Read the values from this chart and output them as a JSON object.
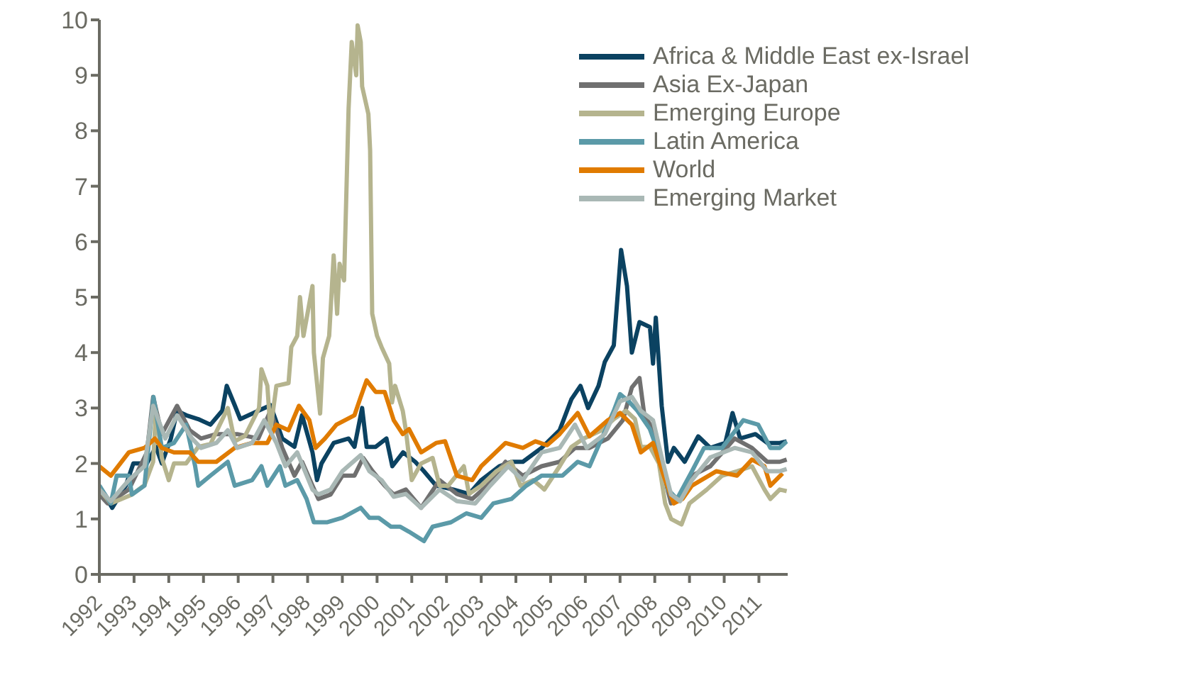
{
  "chart_data": {
    "type": "line",
    "xlim": [
      1992,
      2011.83
    ],
    "xticks": [
      1992,
      1993,
      1994,
      1995,
      1996,
      1997,
      1998,
      1999,
      2000,
      2001,
      2002,
      2003,
      2004,
      2005,
      2006,
      2007,
      2008,
      2009,
      2010,
      2011
    ],
    "ylim": [
      0,
      10
    ],
    "yticks": [
      0,
      1,
      2,
      3,
      4,
      5,
      6,
      7,
      8,
      9,
      10
    ],
    "grid": false,
    "legend": "top right",
    "marker": "none",
    "line_style": "solid",
    "series": [
      {
        "name": "Africa & Middle East ex-Israel",
        "color": "#0b4261",
        "x": [
          1992,
          1992.37,
          1992.76,
          1992.98,
          1993.37,
          1993.63,
          1993.8,
          1994.06,
          1994.24,
          1994.5,
          1994.85,
          1995.2,
          1995.54,
          1995.67,
          1995.9,
          1996.06,
          1996.58,
          1996.93,
          1997.27,
          1997.62,
          1997.84,
          1998.14,
          1998.27,
          1998.4,
          1998.75,
          1999.18,
          1999.35,
          1999.57,
          1999.7,
          1999.96,
          2000.27,
          2000.44,
          2000.75,
          2001.1,
          2001.35,
          2001.7,
          2002.2,
          2002.65,
          2003,
          2003.52,
          2003.87,
          2004.2,
          2004.74,
          2005.26,
          2005.6,
          2005.86,
          2006.08,
          2006.38,
          2006.56,
          2006.82,
          2007.03,
          2007.2,
          2007.34,
          2007.56,
          2007.86,
          2007.95,
          2008.03,
          2008.2,
          2008.38,
          2008.55,
          2008.86,
          2009.25,
          2009.6,
          2010.03,
          2010.24,
          2010.46,
          2010.9,
          2011.24,
          2011.6,
          2011.8
        ],
        "values": [
          1.6,
          1.2,
          1.6,
          2.0,
          2.0,
          2.3,
          2.0,
          2.45,
          2.95,
          2.87,
          2.8,
          2.7,
          2.95,
          3.4,
          3.05,
          2.8,
          2.95,
          3.05,
          2.45,
          2.3,
          2.87,
          2.2,
          1.7,
          2.0,
          2.37,
          2.45,
          2.3,
          3.0,
          2.3,
          2.3,
          2.45,
          1.95,
          2.2,
          2.03,
          1.86,
          1.6,
          1.53,
          1.45,
          1.7,
          1.95,
          2.03,
          2.03,
          2.28,
          2.6,
          3.16,
          3.4,
          3.0,
          3.4,
          3.83,
          4.13,
          5.85,
          5.2,
          4.0,
          4.55,
          4.46,
          3.8,
          4.63,
          3.04,
          2.03,
          2.28,
          2.03,
          2.49,
          2.28,
          2.37,
          2.91,
          2.45,
          2.53,
          2.37,
          2.37,
          2.4
        ]
      },
      {
        "name": "Asia Ex-Japan",
        "color": "#707070",
        "x": [
          1992,
          1992.24,
          1992.85,
          1993.37,
          1993.55,
          1993.8,
          1994.24,
          1994.6,
          1994.93,
          1995.37,
          1995.97,
          1996.58,
          1996.93,
          1997.27,
          1997.62,
          1997.84,
          1998.14,
          1998.31,
          1998.66,
          1999,
          1999.35,
          1999.6,
          1999.87,
          2000.22,
          2000.48,
          2000.83,
          2001.27,
          2001.8,
          2002.3,
          2002.74,
          2003.17,
          2003.7,
          2004.2,
          2004.74,
          2005.26,
          2005.7,
          2006.12,
          2006.65,
          2007.08,
          2007.34,
          2007.56,
          2007.7,
          2008.03,
          2008.3,
          2008.47,
          2008.73,
          2009.07,
          2009.6,
          2010.3,
          2010.8,
          2011.24,
          2011.6,
          2011.8
        ],
        "values": [
          1.44,
          1.28,
          1.53,
          2.2,
          3.2,
          2.53,
          3.04,
          2.6,
          2.45,
          2.53,
          2.53,
          2.45,
          2.95,
          2.28,
          1.78,
          2.03,
          1.6,
          1.36,
          1.44,
          1.78,
          1.78,
          2.1,
          1.86,
          1.6,
          1.44,
          1.53,
          1.2,
          1.7,
          1.45,
          1.36,
          1.6,
          2.03,
          1.78,
          1.95,
          2.03,
          2.28,
          2.28,
          2.45,
          2.78,
          3.37,
          3.54,
          2.87,
          2.53,
          1.7,
          1.28,
          1.36,
          1.78,
          1.95,
          2.45,
          2.28,
          2.03,
          2.03,
          2.07
        ]
      },
      {
        "name": "Emerging Europe",
        "color": "#b5b48e",
        "x": [
          1992,
          1992.33,
          1992.94,
          1993.3,
          1993.55,
          1993.63,
          1993.8,
          1994,
          1994.15,
          1994.5,
          1994.85,
          1995.2,
          1995.7,
          1995.9,
          1996.2,
          1996.6,
          1996.67,
          1996.84,
          1996.93,
          1997.1,
          1997.45,
          1997.53,
          1997.7,
          1997.78,
          1997.88,
          1998.14,
          1998.18,
          1998.36,
          1998.44,
          1998.62,
          1998.75,
          1998.85,
          1998.92,
          1999.05,
          1999.18,
          1999.27,
          1999.4,
          1999.44,
          1999.53,
          1999.57,
          1999.75,
          1999.8,
          1999.86,
          2000,
          2000.13,
          2000.35,
          2000.43,
          2000.52,
          2000.74,
          2000.83,
          2001,
          2001.27,
          2001.6,
          2001.8,
          2002.05,
          2002.5,
          2002.65,
          2003,
          2003.44,
          2003.87,
          2004.13,
          2004.5,
          2004.82,
          2005.26,
          2005.6,
          2005.95,
          2006.47,
          2006.82,
          2007.17,
          2007.43,
          2007.6,
          2007.86,
          2008.12,
          2008.3,
          2008.47,
          2008.77,
          2009,
          2009.5,
          2009.94,
          2010.37,
          2010.8,
          2011.16,
          2011.33,
          2011.6,
          2011.8
        ],
        "values": [
          1.53,
          1.28,
          1.44,
          1.61,
          2.03,
          2.95,
          2.1,
          1.7,
          2.0,
          2.0,
          2.3,
          2.35,
          3.0,
          2.4,
          2.5,
          3.0,
          3.7,
          3.4,
          2.6,
          3.4,
          3.45,
          4.1,
          4.3,
          5.0,
          4.3,
          5.2,
          4.0,
          2.9,
          3.9,
          4.3,
          5.75,
          4.7,
          5.6,
          5.3,
          8.4,
          9.6,
          9.0,
          9.9,
          9.6,
          8.8,
          8.3,
          7.65,
          4.7,
          4.3,
          4.1,
          3.8,
          3.1,
          3.4,
          2.95,
          2.6,
          1.7,
          2.0,
          2.1,
          1.6,
          1.6,
          1.95,
          1.45,
          1.6,
          1.86,
          2.03,
          1.6,
          1.7,
          1.53,
          1.95,
          2.3,
          2.45,
          2.6,
          2.8,
          2.95,
          2.8,
          2.3,
          2.3,
          2.0,
          1.28,
          1.0,
          0.9,
          1.28,
          1.53,
          1.78,
          1.86,
          1.95,
          1.53,
          1.36,
          1.53,
          1.5
        ]
      },
      {
        "name": "Latin America",
        "color": "#5b9aa8",
        "x": [
          1992,
          1992.33,
          1992.5,
          1992.85,
          1992.94,
          1993.3,
          1993.56,
          1993.8,
          1994.15,
          1994.5,
          1994.76,
          1994.85,
          1995.2,
          1995.7,
          1995.9,
          1996.4,
          1996.67,
          1996.84,
          1997.2,
          1997.36,
          1997.7,
          1997.97,
          1998.18,
          1998.57,
          1999,
          1999.53,
          1999.78,
          2000.05,
          2000.4,
          2000.66,
          2000.92,
          2001.35,
          2001.6,
          2002.13,
          2002.57,
          2003,
          2003.35,
          2003.87,
          2004.3,
          2004.74,
          2005.34,
          2005.78,
          2006.12,
          2006.47,
          2006.82,
          2007,
          2007.25,
          2007.5,
          2007.86,
          2008.2,
          2008.38,
          2008.64,
          2009.07,
          2009.42,
          2009.94,
          2010.55,
          2010.98,
          2011.33,
          2011.6,
          2011.8
        ],
        "values": [
          1.6,
          1.28,
          1.78,
          1.78,
          1.44,
          1.6,
          3.2,
          2.28,
          2.37,
          2.7,
          1.95,
          1.6,
          1.78,
          2.03,
          1.6,
          1.7,
          1.95,
          1.6,
          1.95,
          1.6,
          1.7,
          1.36,
          0.94,
          0.94,
          1.02,
          1.2,
          1.02,
          1.02,
          0.86,
          0.86,
          0.77,
          0.6,
          0.86,
          0.94,
          1.1,
          1.02,
          1.28,
          1.36,
          1.6,
          1.78,
          1.78,
          2.03,
          1.95,
          2.45,
          2.95,
          3.25,
          3.12,
          2.95,
          2.62,
          2.03,
          1.53,
          1.36,
          1.86,
          2.28,
          2.28,
          2.78,
          2.7,
          2.28,
          2.28,
          2.4
        ]
      },
      {
        "name": "World",
        "color": "#e07b00",
        "x": [
          1992,
          1992.33,
          1992.85,
          1993.3,
          1993.6,
          1993.8,
          1994.15,
          1994.6,
          1994.85,
          1995.37,
          1995.9,
          1996.4,
          1996.84,
          1997.1,
          1997.45,
          1997.75,
          1998.05,
          1998.23,
          1998.5,
          1998.83,
          1999.35,
          1999.53,
          1999.7,
          1999.96,
          2000.22,
          2000.48,
          2000.74,
          2000.92,
          2001.27,
          2001.7,
          2001.96,
          2002.3,
          2002.74,
          2003,
          2003.7,
          2004.2,
          2004.56,
          2004.9,
          2005.26,
          2005.78,
          2006.12,
          2006.65,
          2007,
          2007.34,
          2007.6,
          2007.95,
          2008.3,
          2008.55,
          2008.8,
          2009.07,
          2009.77,
          2010.37,
          2010.8,
          2011.16,
          2011.33,
          2011.68
        ],
        "values": [
          1.95,
          1.78,
          2.2,
          2.28,
          2.45,
          2.28,
          2.2,
          2.2,
          2.03,
          2.03,
          2.28,
          2.37,
          2.37,
          2.7,
          2.6,
          3.04,
          2.78,
          2.28,
          2.45,
          2.7,
          2.87,
          3.2,
          3.5,
          3.29,
          3.29,
          2.78,
          2.53,
          2.62,
          2.2,
          2.37,
          2.4,
          1.78,
          1.7,
          1.95,
          2.37,
          2.28,
          2.4,
          2.33,
          2.53,
          2.91,
          2.49,
          2.78,
          2.91,
          2.7,
          2.2,
          2.37,
          1.7,
          1.28,
          1.36,
          1.6,
          1.86,
          1.78,
          2.07,
          1.95,
          1.6,
          1.82
        ]
      },
      {
        "name": "Emerging Market",
        "color": "#a9b8b5",
        "x": [
          1992,
          1992.33,
          1992.85,
          1993.3,
          1993.55,
          1993.9,
          1994.24,
          1994.67,
          1994.93,
          1995.37,
          1995.7,
          1995.97,
          1996.4,
          1996.75,
          1997.1,
          1997.36,
          1997.7,
          1998.14,
          1998.31,
          1998.66,
          1999,
          1999.53,
          1999.78,
          2000.13,
          2000.48,
          2000.83,
          2001.27,
          2001.8,
          2002.3,
          2002.83,
          2003.26,
          2003.78,
          2004.2,
          2004.74,
          2005.26,
          2005.7,
          2006.04,
          2006.56,
          2007,
          2007.34,
          2007.6,
          2007.95,
          2008.2,
          2008.47,
          2008.73,
          2009.07,
          2009.6,
          2010.3,
          2010.8,
          2011.24,
          2011.6,
          2011.8
        ],
        "values": [
          1.53,
          1.32,
          1.7,
          1.95,
          3.04,
          2.45,
          2.87,
          2.45,
          2.28,
          2.37,
          2.6,
          2.28,
          2.37,
          2.78,
          2.37,
          1.95,
          2.2,
          1.53,
          1.44,
          1.53,
          1.86,
          2.15,
          1.86,
          1.7,
          1.4,
          1.45,
          1.2,
          1.53,
          1.32,
          1.28,
          1.6,
          1.95,
          1.7,
          2.2,
          2.28,
          2.7,
          2.28,
          2.53,
          3.12,
          3.2,
          2.95,
          2.78,
          2.11,
          1.44,
          1.32,
          1.7,
          2.11,
          2.28,
          2.2,
          1.86,
          1.86,
          1.9
        ]
      }
    ]
  }
}
